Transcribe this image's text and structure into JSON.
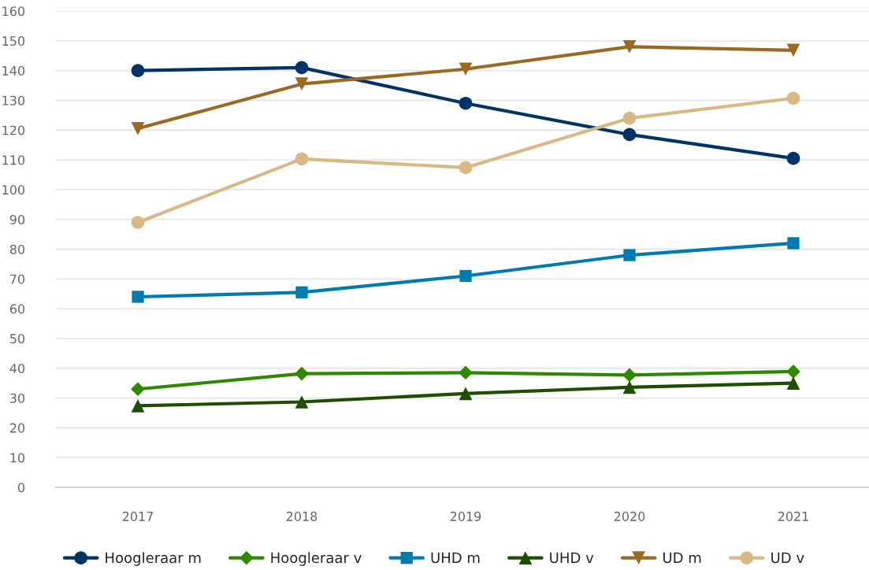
{
  "chart_data": {
    "type": "line",
    "categories": [
      "2017",
      "2018",
      "2019",
      "2020",
      "2021"
    ],
    "series": [
      {
        "name": "Hoogleraar m",
        "color": "#003366",
        "marker": "circle",
        "values": [
          140,
          141,
          129,
          118.5,
          110.5
        ]
      },
      {
        "name": "Hoogleraar v",
        "color": "#2e8900",
        "marker": "diamond",
        "values": [
          33,
          38.2,
          38.5,
          37.7,
          38.9
        ]
      },
      {
        "name": "UHD m",
        "color": "#007bb0",
        "marker": "square",
        "values": [
          64,
          65.5,
          71,
          78,
          82
        ]
      },
      {
        "name": "UHD v",
        "color": "#1c5000",
        "marker": "triangle",
        "values": [
          27.4,
          28.7,
          31.5,
          33.6,
          35
        ]
      },
      {
        "name": "UD m",
        "color": "#9a6a22",
        "marker": "triangle-down",
        "values": [
          120.5,
          135.5,
          140.5,
          148,
          146.8
        ]
      },
      {
        "name": "UD v",
        "color": "#d9b886",
        "marker": "circle",
        "values": [
          89,
          110.3,
          107.4,
          124,
          130.7
        ]
      }
    ],
    "ylim": [
      0,
      160
    ],
    "yticks": [
      0,
      10,
      20,
      30,
      40,
      50,
      60,
      70,
      80,
      90,
      100,
      110,
      120,
      130,
      140,
      150,
      160
    ],
    "grid": "y",
    "legend": "bottom",
    "line_style": "solid"
  }
}
